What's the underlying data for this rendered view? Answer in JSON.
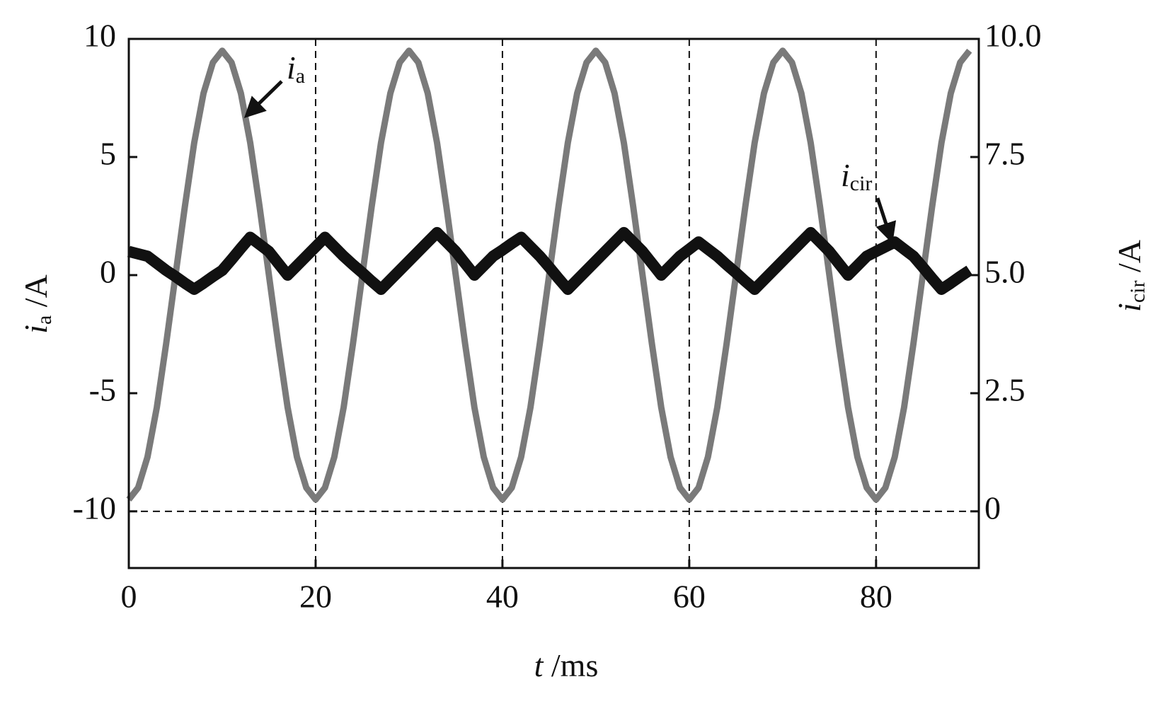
{
  "chart_data": {
    "type": "line",
    "x": [
      0,
      1,
      2,
      3,
      4,
      5,
      6,
      7,
      8,
      9,
      10,
      11,
      12,
      13,
      14,
      15,
      16,
      17,
      18,
      19,
      20,
      21,
      22,
      23,
      24,
      25,
      26,
      27,
      28,
      29,
      30,
      31,
      32,
      33,
      34,
      35,
      36,
      37,
      38,
      39,
      40,
      41,
      42,
      43,
      44,
      45,
      46,
      47,
      48,
      49,
      50,
      51,
      52,
      53,
      54,
      55,
      56,
      57,
      58,
      59,
      60,
      61,
      62,
      63,
      64,
      65,
      66,
      67,
      68,
      69,
      70,
      71,
      72,
      73,
      74,
      75,
      76,
      77,
      78,
      79,
      80,
      81,
      82,
      83,
      84,
      85,
      86,
      87,
      88,
      89,
      90
    ],
    "series": [
      {
        "name": {
          "symbol": "i",
          "subscript": "a"
        },
        "color": "#7a7a7a",
        "axis": "y",
        "values": [
          -9.5,
          -9.0,
          -7.7,
          -5.6,
          -2.9,
          0,
          2.9,
          5.6,
          7.7,
          9.0,
          9.5,
          9.0,
          7.7,
          5.6,
          2.9,
          0,
          -2.9,
          -5.6,
          -7.7,
          -9.0,
          -9.5,
          -9.0,
          -7.7,
          -5.6,
          -2.9,
          0,
          2.9,
          5.6,
          7.7,
          9.0,
          9.5,
          9.0,
          7.7,
          5.6,
          2.9,
          0,
          -2.9,
          -5.6,
          -7.7,
          -9.0,
          -9.5,
          -9.0,
          -7.7,
          -5.6,
          -2.9,
          0,
          2.9,
          5.6,
          7.7,
          9.0,
          9.5,
          9.0,
          7.7,
          5.6,
          2.9,
          0,
          -2.9,
          -5.6,
          -7.7,
          -9.0,
          -9.5,
          -9.0,
          -7.7,
          -5.6,
          -2.9,
          0,
          2.9,
          5.6,
          7.7,
          9.0,
          9.5,
          9.0,
          7.7,
          5.6,
          2.9,
          0,
          -2.9,
          -5.6,
          -7.7,
          -9.0,
          -9.5,
          -9.0,
          -7.7,
          -5.6,
          -2.9,
          0,
          2.9,
          5.6,
          7.7,
          9.0,
          9.5
        ]
      },
      {
        "name": {
          "symbol": "i",
          "subscript": "cir"
        },
        "color": "#111111",
        "axis": "y2",
        "values": [
          5.5,
          5.45,
          5.4,
          5.25,
          5.1,
          4.97,
          4.83,
          4.7,
          4.83,
          4.97,
          5.1,
          5.33,
          5.57,
          5.8,
          5.65,
          5.5,
          5.25,
          5.0,
          5.2,
          5.4,
          5.6,
          5.8,
          5.6,
          5.4,
          5.22,
          5.05,
          4.87,
          4.7,
          4.9,
          5.1,
          5.3,
          5.5,
          5.7,
          5.9,
          5.7,
          5.5,
          5.25,
          5.0,
          5.2,
          5.4,
          5.53,
          5.67,
          5.8,
          5.6,
          5.4,
          5.17,
          4.93,
          4.7,
          4.9,
          5.1,
          5.3,
          5.5,
          5.7,
          5.9,
          5.7,
          5.5,
          5.25,
          5.0,
          5.2,
          5.4,
          5.55,
          5.7,
          5.55,
          5.4,
          5.22,
          5.05,
          4.87,
          4.7,
          4.9,
          5.1,
          5.3,
          5.5,
          5.7,
          5.9,
          5.7,
          5.5,
          5.25,
          5.0,
          5.2,
          5.4,
          5.5,
          5.6,
          5.7,
          5.55,
          5.4,
          5.17,
          4.93,
          4.7,
          4.83,
          4.97,
          5.1
        ]
      }
    ],
    "x_label": {
      "symbol": "t",
      "unit": " /ms"
    },
    "y_label": {
      "symbol": "i",
      "subscript": "a",
      "unit": " /A"
    },
    "y2_label": {
      "symbol": "i",
      "subscript": "cir",
      "unit": " /A"
    },
    "xlim": [
      0,
      91
    ],
    "xticks": [
      0,
      20,
      40,
      60,
      80
    ],
    "ylim": [
      -12.4,
      10
    ],
    "yticks": [
      -10,
      -5,
      0,
      5,
      10
    ],
    "y2lim": [
      -1.2,
      10
    ],
    "y2ticks": [
      0,
      2.5,
      {
        "value": 5,
        "label": "5.0"
      },
      7.5,
      {
        "value": 10,
        "label": "10.0"
      }
    ],
    "grid_x": [
      20,
      40,
      60,
      80
    ],
    "grid_y": [
      -10,
      10
    ]
  }
}
